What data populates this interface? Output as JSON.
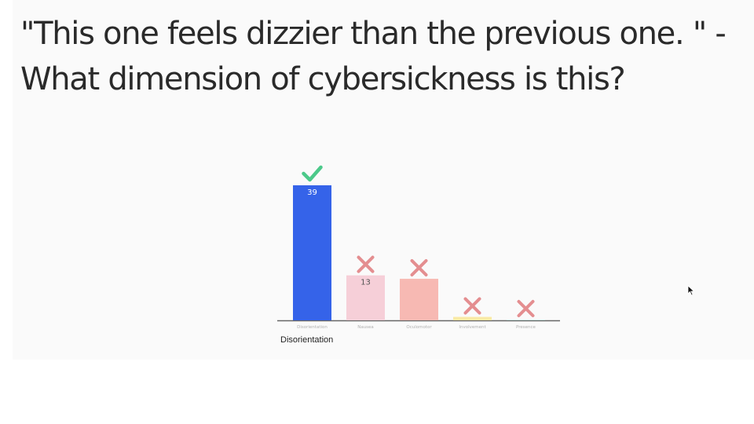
{
  "question": "\"This one feels dizzier than the previous one. \" - What dimension of cybersickness is this?",
  "answer_label": "Disorientation",
  "chart_data": {
    "type": "bar",
    "categories": [
      "Disorientation",
      "Nausea",
      "Oculomotor",
      "Involvement",
      "Presence"
    ],
    "values": [
      39,
      13,
      12,
      1,
      0
    ],
    "value_labels": [
      "39",
      "13",
      "",
      "",
      ""
    ],
    "correct": [
      true,
      false,
      false,
      false,
      false
    ],
    "ylim": [
      0,
      39
    ],
    "colors": [
      "#3563e9",
      "#f6cfd8",
      "#f7b9b3",
      "#faeaa5",
      "#cde9e4"
    ],
    "check_color": "#4cc98a",
    "cross_color": "#e48e90",
    "grid": false
  }
}
